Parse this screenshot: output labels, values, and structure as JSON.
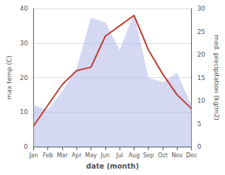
{
  "chart_data": {
    "type": "line",
    "categories": [
      "Jan",
      "Feb",
      "Mar",
      "Apr",
      "May",
      "Jun",
      "Jul",
      "Aug",
      "Sep",
      "Oct",
      "Nov",
      "Dec"
    ],
    "xlabel": "date (month)",
    "ylabel": "max temp (C)",
    "y2label": "med. precipitation (kg/m2)",
    "series": [
      {
        "type": "area",
        "axis": "y2",
        "color": "#b0b8e8",
        "values": [
          9,
          8,
          12,
          17,
          28,
          27,
          21,
          29,
          15,
          14,
          16,
          9
        ]
      },
      {
        "type": "line",
        "color": "#c0392b",
        "values": [
          6,
          12,
          18,
          22,
          23,
          32,
          35,
          38,
          28,
          21,
          15,
          11
        ]
      }
    ],
    "ylim": [
      0,
      40
    ],
    "yticks": [
      0,
      10,
      20,
      30,
      40
    ],
    "y2lim": [
      0,
      30
    ],
    "y2ticks": [
      0,
      5,
      10,
      15,
      20,
      25,
      30
    ],
    "grid": true
  }
}
